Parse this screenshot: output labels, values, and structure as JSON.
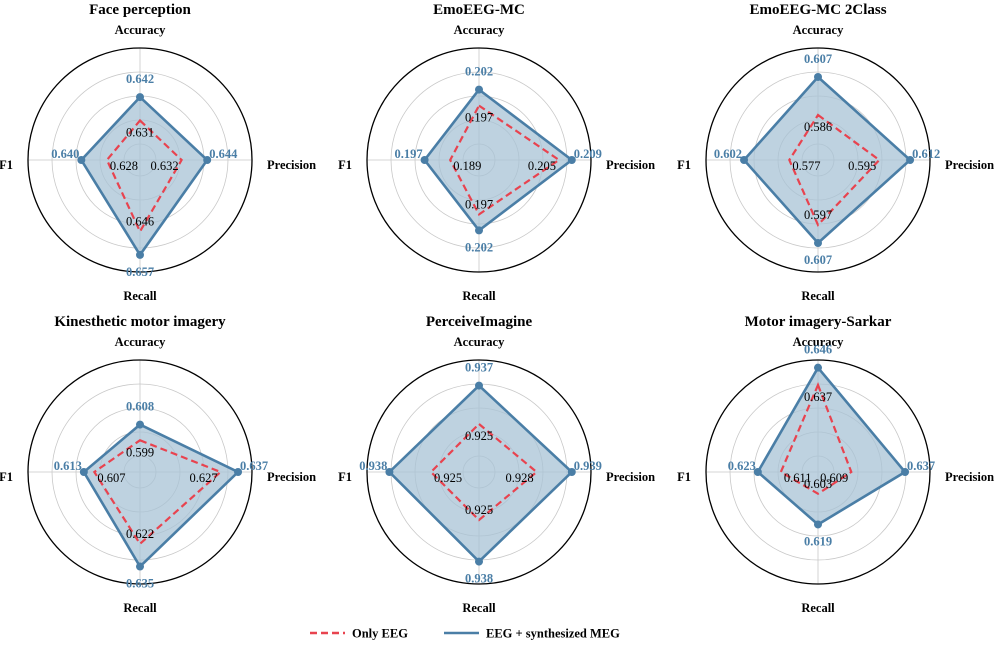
{
  "colors": {
    "eeg": "#e8434f",
    "syn": "#4a7ea6",
    "syn_fill": "#a8c3d6",
    "grid": "#c8c8c8",
    "outer": "#000000"
  },
  "axes": [
    "Accuracy",
    "Precision",
    "Recall",
    "F1"
  ],
  "legend": {
    "eeg_label": "Only EEG",
    "syn_label": "EEG + synthesized MEG"
  },
  "chart_data": [
    {
      "type": "radar",
      "title": "Face perception",
      "rmin": 0.62,
      "rmax": 0.665,
      "series": [
        {
          "name": "Only EEG",
          "values": [
            0.631,
            0.632,
            0.646,
            0.628
          ],
          "labels": [
            "0.631",
            "0.632",
            "0.646",
            "0.628"
          ]
        },
        {
          "name": "EEG + synthesized MEG",
          "values": [
            0.642,
            0.644,
            0.657,
            0.64
          ],
          "labels": [
            "0.642",
            "0.644",
            "0.657",
            "0.640"
          ]
        }
      ]
    },
    {
      "type": "radar",
      "title": "EmoEEG-MC",
      "rmin": 0.185,
      "rmax": 0.215,
      "series": [
        {
          "name": "Only EEG",
          "values": [
            0.197,
            0.205,
            0.197,
            0.189
          ],
          "labels": [
            "0.197",
            "0.205",
            "0.197",
            "0.189"
          ]
        },
        {
          "name": "EEG + synthesized MEG",
          "values": [
            0.202,
            0.209,
            0.202,
            0.197
          ],
          "labels": [
            "0.202",
            "0.209",
            "0.202",
            "0.197"
          ]
        }
      ]
    },
    {
      "type": "radar",
      "title": "EmoEEG-MC 2Class",
      "rmin": 0.57,
      "rmax": 0.623,
      "series": [
        {
          "name": "Only EEG",
          "values": [
            0.586,
            0.595,
            0.597,
            0.577
          ],
          "labels": [
            "0.586",
            "0.595",
            "0.597",
            "0.577"
          ]
        },
        {
          "name": "EEG + synthesized MEG",
          "values": [
            0.607,
            0.612,
            0.607,
            0.602
          ],
          "labels": [
            "0.607",
            "0.612",
            "0.607",
            "0.602"
          ]
        }
      ]
    },
    {
      "type": "radar",
      "title": "Kinesthetic motor imagery",
      "rmin": 0.59,
      "rmax": 0.645,
      "series": [
        {
          "name": "Only EEG",
          "values": [
            0.599,
            0.627,
            0.622,
            0.607
          ],
          "labels": [
            "0.599",
            "0.627",
            "0.622",
            "0.607"
          ]
        },
        {
          "name": "EEG + synthesized MEG",
          "values": [
            0.608,
            0.637,
            0.635,
            0.613
          ],
          "labels": [
            "0.608",
            "0.637",
            "0.635",
            "0.613"
          ]
        }
      ]
    },
    {
      "type": "radar",
      "title": "PerceiveImagine",
      "rmin": 0.915,
      "rmax": 0.945,
      "series": [
        {
          "name": "Only EEG",
          "values": [
            0.925,
            0.928,
            0.925,
            0.925
          ],
          "labels": [
            "0.925",
            "0.928",
            "0.925",
            "0.925"
          ]
        },
        {
          "name": "EEG + synthesized MEG",
          "values": [
            0.937,
            0.939,
            0.938,
            0.938
          ],
          "labels": [
            "0.937",
            "0.939",
            "0.938",
            "0.938"
          ]
        }
      ]
    },
    {
      "type": "radar",
      "title": "Motor imagery-Sarkar",
      "rmin": 0.6,
      "rmax": 0.65,
      "series": [
        {
          "name": "Only EEG",
          "values": [
            0.637,
            0.609,
            0.603,
            0.611
          ],
          "labels": [
            "0.637",
            "0.609",
            "0.603",
            "0.611"
          ]
        },
        {
          "name": "EEG + synthesized MEG",
          "values": [
            0.646,
            0.637,
            0.619,
            0.623
          ],
          "labels": [
            "0.646",
            "0.637",
            "0.619",
            "0.623"
          ]
        }
      ]
    }
  ]
}
